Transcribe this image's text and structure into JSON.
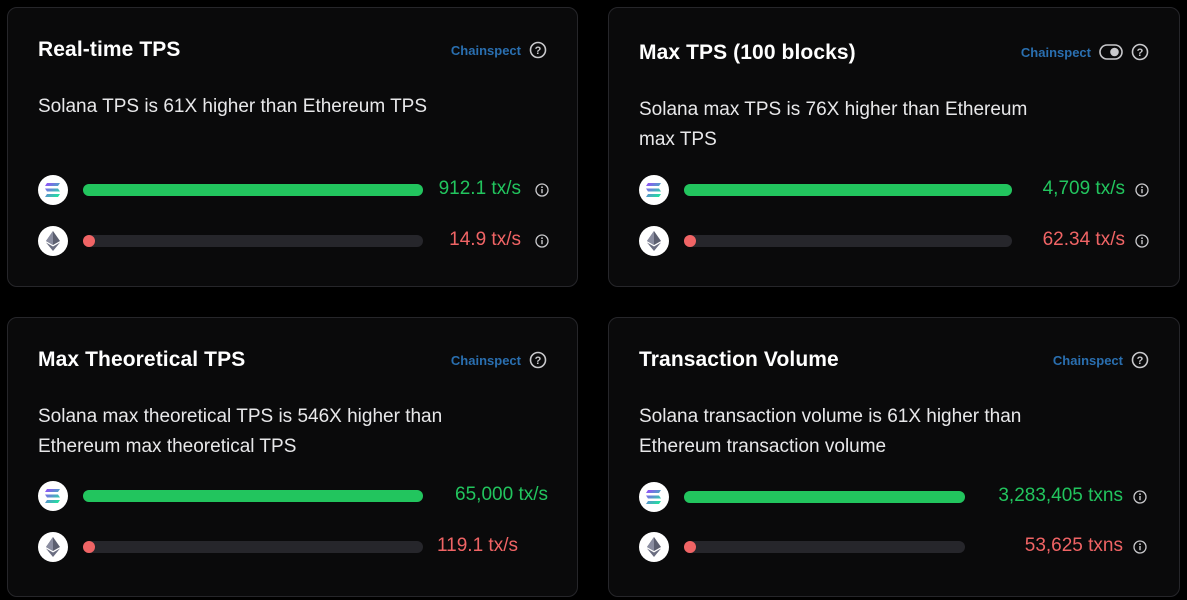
{
  "colors": {
    "solana": "#22c55e",
    "ethereum": "#f06465",
    "source": "#2a6fb0"
  },
  "cards": [
    {
      "title": "Real-time TPS",
      "source": "Chainspect",
      "description_lines": [
        "Solana TPS is 61X higher than Ethereum TPS",
        ""
      ],
      "solana": {
        "value": "912.1 tx/s",
        "fraction": 1.0
      },
      "ethereum": {
        "value": "14.9 tx/s",
        "fraction": 0.016
      }
    },
    {
      "title": "Max TPS (100 blocks)",
      "source": "Chainspect",
      "description_lines": [
        "Solana max TPS is 76X higher than Ethereum",
        "max TPS"
      ],
      "solana": {
        "value": "4,709 tx/s",
        "fraction": 1.0
      },
      "ethereum": {
        "value": "62.34 tx/s",
        "fraction": 0.013
      }
    },
    {
      "title": "Max Theoretical TPS",
      "source": "Chainspect",
      "description_lines": [
        "Solana max theoretical TPS is 546X higher than",
        "Ethereum max theoretical TPS"
      ],
      "solana": {
        "value": "65,000 tx/s",
        "fraction": 1.0
      },
      "ethereum": {
        "value": "119.1 tx/s",
        "fraction": 0.002
      }
    },
    {
      "title": "Transaction Volume",
      "source": "Chainspect",
      "description_lines": [
        "Solana transaction volume is 61X higher than",
        "Ethereum transaction volume"
      ],
      "solana": {
        "value": "3,283,405 txns",
        "fraction": 1.0
      },
      "ethereum": {
        "value": "53,625 txns",
        "fraction": 0.016
      }
    }
  ]
}
